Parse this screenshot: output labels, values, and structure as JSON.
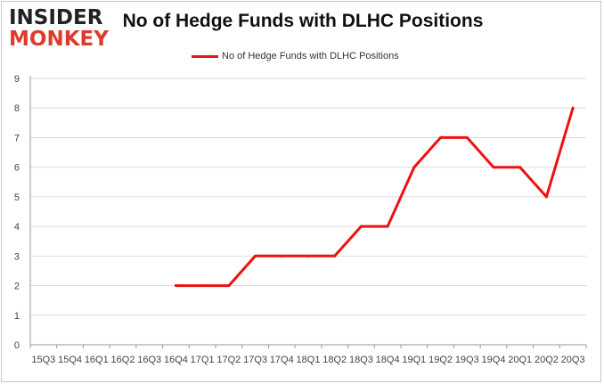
{
  "logo": {
    "line1": "INSIDER",
    "line2": "MONKEY"
  },
  "chart_data": {
    "type": "line",
    "title": "No of Hedge Funds with DLHC Positions",
    "xlabel": "",
    "ylabel": "",
    "categories": [
      "15Q3",
      "15Q4",
      "16Q1",
      "16Q2",
      "16Q3",
      "16Q4",
      "17Q1",
      "17Q2",
      "17Q3",
      "17Q4",
      "18Q1",
      "18Q2",
      "18Q3",
      "18Q4",
      "19Q1",
      "19Q2",
      "19Q3",
      "19Q4",
      "20Q1",
      "20Q2",
      "20Q3"
    ],
    "series": [
      {
        "name": "No of Hedge Funds with DLHC Positions",
        "color": "#ee1111",
        "values": [
          null,
          null,
          null,
          null,
          null,
          2,
          2,
          2,
          3,
          3,
          3,
          3,
          4,
          4,
          6,
          7,
          7,
          6,
          6,
          5,
          8
        ]
      }
    ],
    "ylim": [
      0,
      9
    ],
    "yticks": [
      0,
      1,
      2,
      3,
      4,
      5,
      6,
      7,
      8,
      9
    ],
    "grid": "horizontal",
    "legend_position": "top-center"
  }
}
